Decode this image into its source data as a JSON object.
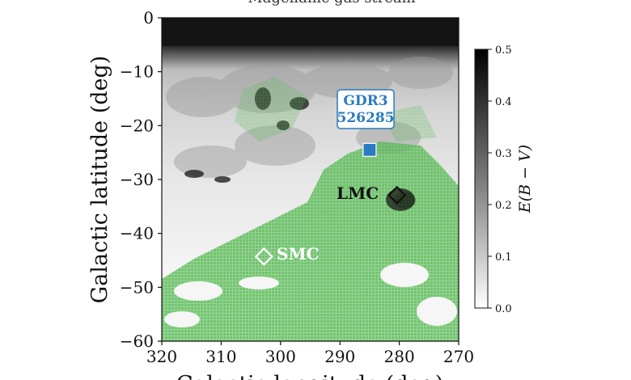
{
  "figure": {
    "title": "Magellanic gas stream",
    "xlabel": "Galactic longitude (deg)",
    "ylabel": "Galactic latitude (deg)",
    "xticks": [
      "320",
      "310",
      "300",
      "290",
      "280",
      "270"
    ],
    "yticks": [
      "0",
      "−10",
      "−20",
      "−30",
      "−40",
      "−50",
      "−60"
    ],
    "xrange": [
      320,
      270
    ],
    "yrange": [
      0,
      -60
    ]
  },
  "colorbar": {
    "label": "E(B − V)",
    "ticks": [
      "0.5",
      "0.4",
      "0.3",
      "0.2",
      "0.1",
      "0.0"
    ],
    "range": [
      0.0,
      0.5
    ],
    "colormap": "grey-reversed"
  },
  "annotations": {
    "gdr3_line1": "GDR3",
    "gdr3_line2": "526285",
    "lmc": "LMC",
    "smc": "SMC"
  },
  "markers": {
    "gdr3": {
      "l": 285.0,
      "b": -24.5,
      "shape": "square",
      "color": "#2a7bbf"
    },
    "lmc": {
      "l": 280.4,
      "b": -32.9,
      "shape": "diamond",
      "color": "#111111"
    },
    "smc": {
      "l": 302.8,
      "b": -44.3,
      "shape": "diamond",
      "color": "#ffffff"
    }
  },
  "colors": {
    "gas": "#3fae3f",
    "gdr3_box_edge": "#2a7bbf"
  }
}
